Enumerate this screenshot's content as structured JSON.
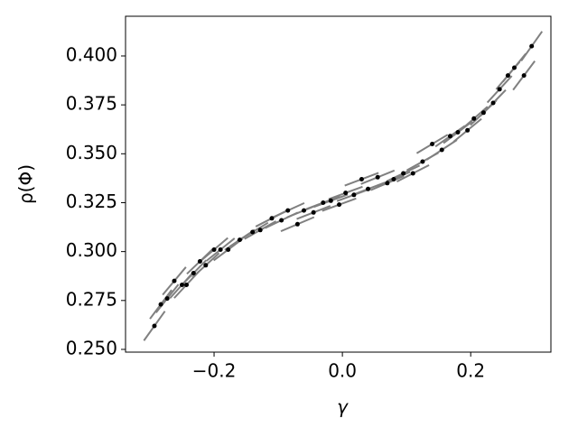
{
  "chart_data": {
    "type": "scatter",
    "x_label": "γ",
    "y_label": "ρ(Φ)",
    "x": [
      -0.293,
      -0.283,
      -0.273,
      -0.262,
      -0.25,
      -0.243,
      -0.232,
      -0.222,
      -0.213,
      -0.2,
      -0.19,
      -0.178,
      -0.16,
      -0.14,
      -0.128,
      -0.11,
      -0.095,
      -0.085,
      -0.07,
      -0.06,
      -0.045,
      -0.03,
      -0.018,
      -0.005,
      0.005,
      0.018,
      0.03,
      0.04,
      0.055,
      0.07,
      0.08,
      0.095,
      0.11,
      0.125,
      0.14,
      0.155,
      0.168,
      0.18,
      0.195,
      0.205,
      0.22,
      0.235,
      0.245,
      0.258,
      0.268,
      0.283,
      0.295
    ],
    "values": [
      0.262,
      0.273,
      0.276,
      0.285,
      0.283,
      0.283,
      0.289,
      0.295,
      0.293,
      0.301,
      0.301,
      0.301,
      0.306,
      0.31,
      0.311,
      0.317,
      0.316,
      0.321,
      0.314,
      0.321,
      0.32,
      0.325,
      0.326,
      0.324,
      0.33,
      0.329,
      0.337,
      0.332,
      0.338,
      0.335,
      0.337,
      0.34,
      0.34,
      0.346,
      0.355,
      0.352,
      0.359,
      0.361,
      0.362,
      0.368,
      0.371,
      0.376,
      0.383,
      0.39,
      0.394,
      0.39,
      0.405
    ],
    "slopes": [
      0.459,
      0.436,
      0.414,
      0.391,
      0.367,
      0.353,
      0.333,
      0.315,
      0.299,
      0.278,
      0.263,
      0.245,
      0.221,
      0.197,
      0.185,
      0.168,
      0.156,
      0.149,
      0.139,
      0.134,
      0.128,
      0.124,
      0.121,
      0.12,
      0.12,
      0.121,
      0.124,
      0.126,
      0.132,
      0.139,
      0.145,
      0.156,
      0.168,
      0.182,
      0.197,
      0.215,
      0.232,
      0.248,
      0.27,
      0.286,
      0.311,
      0.338,
      0.357,
      0.383,
      0.404,
      0.436,
      0.464
    ],
    "color": "#000000",
    "segment_color": "#808080",
    "xlim": [
      -0.338,
      0.325
    ],
    "ylim": [
      0.2486,
      0.4203
    ],
    "xticks": [
      {
        "value": -0.2,
        "label": "−0.2"
      },
      {
        "value": 0.0,
        "label": "0.0"
      },
      {
        "value": 0.2,
        "label": "0.2"
      }
    ],
    "yticks": [
      {
        "value": 0.25,
        "label": "0.250"
      },
      {
        "value": 0.275,
        "label": "0.275"
      },
      {
        "value": 0.3,
        "label": "0.300"
      },
      {
        "value": 0.325,
        "label": "0.325"
      },
      {
        "value": 0.35,
        "label": "0.350"
      },
      {
        "value": 0.375,
        "label": "0.375"
      },
      {
        "value": 0.4,
        "label": "0.400"
      }
    ]
  }
}
